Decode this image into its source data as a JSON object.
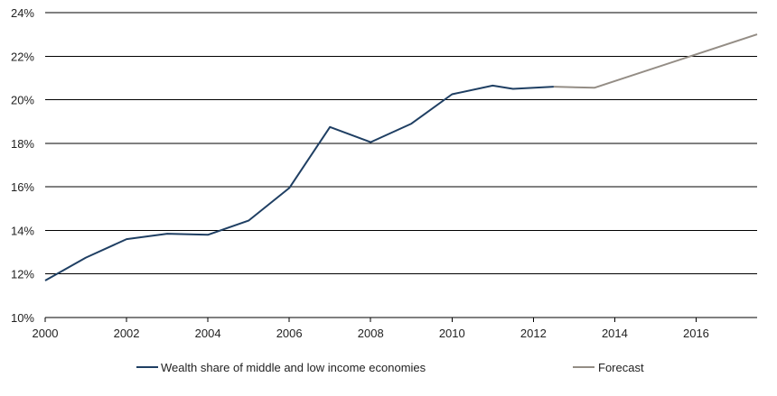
{
  "chart_data": {
    "type": "line",
    "title": "",
    "xlabel": "",
    "ylabel": "",
    "xlim": [
      2000,
      2017.5
    ],
    "ylim": [
      10,
      24
    ],
    "grid": "horizontal",
    "legend_position": "bottom",
    "x_ticks": [
      2000,
      2002,
      2004,
      2006,
      2008,
      2010,
      2012,
      2014,
      2016
    ],
    "x_tick_labels": [
      "2000",
      "2002",
      "2004",
      "2006",
      "2008",
      "2010",
      "2012",
      "2014",
      "2016"
    ],
    "y_ticks": [
      10,
      12,
      14,
      16,
      18,
      20,
      22,
      24
    ],
    "y_tick_labels": [
      "10%",
      "12%",
      "14%",
      "16%",
      "18%",
      "20%",
      "22%",
      "24%"
    ],
    "series": [
      {
        "name": "Wealth share of middle and low income economies",
        "color": "#1f3f63",
        "x": [
          2000,
          2001,
          2002,
          2003,
          2004,
          2005,
          2006,
          2007,
          2008,
          2009,
          2010,
          2011,
          2011.5,
          2012.5
        ],
        "y": [
          11.7,
          12.75,
          13.6,
          13.85,
          13.8,
          14.45,
          15.95,
          18.75,
          18.05,
          18.9,
          20.25,
          20.65,
          20.5,
          20.6
        ]
      },
      {
        "name": "Forecast",
        "color": "#948d85",
        "x": [
          2012.5,
          2013.5,
          2017.5
        ],
        "y": [
          20.6,
          20.55,
          23
        ]
      }
    ]
  }
}
